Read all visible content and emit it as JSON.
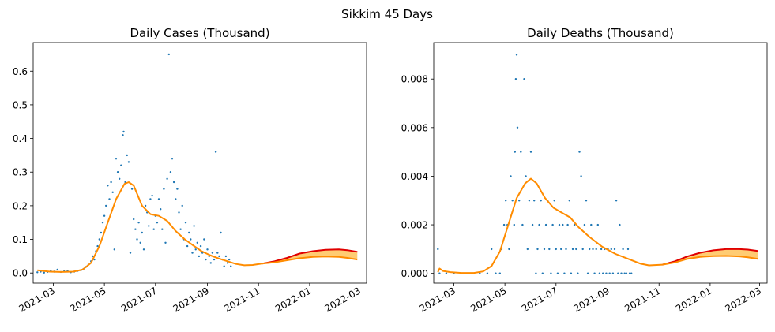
{
  "suptitle": "Sikkim 45 Days",
  "colors": {
    "scatter": "#1f77b4",
    "fit": "#ff8c00",
    "forecast": "#e00000",
    "band": "#ffbb44"
  },
  "chart_data": [
    {
      "type": "scatter",
      "title": "Daily Cases (Thousand)",
      "x_axis": "date",
      "xlim": [
        "2021-02-05",
        "2022-03-10"
      ],
      "ylim": [
        -0.03,
        0.685
      ],
      "xticks": [
        "2021-03",
        "2021-05",
        "2021-07",
        "2021-09",
        "2021-11",
        "2022-01",
        "2022-03"
      ],
      "yticks": [
        0.0,
        0.1,
        0.2,
        0.3,
        0.4,
        0.5,
        0.6
      ],
      "ytick_labels": [
        "0.0",
        "0.1",
        "0.2",
        "0.3",
        "0.4",
        "0.5",
        "0.6"
      ],
      "observed_points": [
        [
          "2021-02-10",
          0.002
        ],
        [
          "2021-02-14",
          0.004
        ],
        [
          "2021-02-18",
          0.001
        ],
        [
          "2021-02-22",
          0.003
        ],
        [
          "2021-02-26",
          0.006
        ],
        [
          "2021-03-02",
          0.004
        ],
        [
          "2021-03-06",
          0.01
        ],
        [
          "2021-03-10",
          0.003
        ],
        [
          "2021-03-14",
          0.005
        ],
        [
          "2021-03-18",
          0.007
        ],
        [
          "2021-03-22",
          0.002
        ],
        [
          "2021-03-26",
          0.004
        ],
        [
          "2021-03-30",
          0.006
        ],
        [
          "2021-04-03",
          0.008
        ],
        [
          "2021-04-06",
          0.012
        ],
        [
          "2021-04-09",
          0.018
        ],
        [
          "2021-04-12",
          0.025
        ],
        [
          "2021-04-15",
          0.035
        ],
        [
          "2021-04-17",
          0.05
        ],
        [
          "2021-04-19",
          0.04
        ],
        [
          "2021-04-21",
          0.065
        ],
        [
          "2021-04-23",
          0.08
        ],
        [
          "2021-04-25",
          0.1
        ],
        [
          "2021-04-27",
          0.12
        ],
        [
          "2021-04-29",
          0.15
        ],
        [
          "2021-05-01",
          0.17
        ],
        [
          "2021-05-03",
          0.2
        ],
        [
          "2021-05-05",
          0.26
        ],
        [
          "2021-05-07",
          0.22
        ],
        [
          "2021-05-09",
          0.27
        ],
        [
          "2021-05-11",
          0.24
        ],
        [
          "2021-05-13",
          0.07
        ],
        [
          "2021-05-15",
          0.34
        ],
        [
          "2021-05-17",
          0.3
        ],
        [
          "2021-05-19",
          0.28
        ],
        [
          "2021-05-21",
          0.32
        ],
        [
          "2021-05-23",
          0.41
        ],
        [
          "2021-05-24",
          0.42
        ],
        [
          "2021-05-26",
          0.27
        ],
        [
          "2021-05-28",
          0.35
        ],
        [
          "2021-05-30",
          0.33
        ],
        [
          "2021-06-01",
          0.06
        ],
        [
          "2021-06-03",
          0.25
        ],
        [
          "2021-06-05",
          0.16
        ],
        [
          "2021-06-07",
          0.13
        ],
        [
          "2021-06-09",
          0.1
        ],
        [
          "2021-06-11",
          0.15
        ],
        [
          "2021-06-13",
          0.09
        ],
        [
          "2021-06-15",
          0.12
        ],
        [
          "2021-06-17",
          0.07
        ],
        [
          "2021-06-19",
          0.2
        ],
        [
          "2021-06-21",
          0.18
        ],
        [
          "2021-06-23",
          0.14
        ],
        [
          "2021-06-25",
          0.22
        ],
        [
          "2021-06-27",
          0.23
        ],
        [
          "2021-06-29",
          0.13
        ],
        [
          "2021-07-01",
          0.17
        ],
        [
          "2021-07-03",
          0.15
        ],
        [
          "2021-07-05",
          0.22
        ],
        [
          "2021-07-07",
          0.19
        ],
        [
          "2021-07-09",
          0.13
        ],
        [
          "2021-07-11",
          0.25
        ],
        [
          "2021-07-13",
          0.09
        ],
        [
          "2021-07-15",
          0.28
        ],
        [
          "2021-07-17",
          0.65
        ],
        [
          "2021-07-19",
          0.3
        ],
        [
          "2021-07-21",
          0.34
        ],
        [
          "2021-07-23",
          0.27
        ],
        [
          "2021-07-25",
          0.22
        ],
        [
          "2021-07-27",
          0.25
        ],
        [
          "2021-07-29",
          0.18
        ],
        [
          "2021-07-31",
          0.13
        ],
        [
          "2021-08-02",
          0.2
        ],
        [
          "2021-08-04",
          0.1
        ],
        [
          "2021-08-06",
          0.15
        ],
        [
          "2021-08-08",
          0.08
        ],
        [
          "2021-08-10",
          0.12
        ],
        [
          "2021-08-12",
          0.1
        ],
        [
          "2021-08-14",
          0.06
        ],
        [
          "2021-08-16",
          0.14
        ],
        [
          "2021-08-18",
          0.07
        ],
        [
          "2021-08-20",
          0.09
        ],
        [
          "2021-08-22",
          0.05
        ],
        [
          "2021-08-24",
          0.08
        ],
        [
          "2021-08-26",
          0.06
        ],
        [
          "2021-08-28",
          0.1
        ],
        [
          "2021-08-30",
          0.04
        ],
        [
          "2021-09-01",
          0.07
        ],
        [
          "2021-09-03",
          0.05
        ],
        [
          "2021-09-05",
          0.03
        ],
        [
          "2021-09-07",
          0.06
        ],
        [
          "2021-09-09",
          0.04
        ],
        [
          "2021-09-11",
          0.36
        ],
        [
          "2021-09-13",
          0.06
        ],
        [
          "2021-09-15",
          0.05
        ],
        [
          "2021-09-17",
          0.12
        ],
        [
          "2021-09-19",
          0.04
        ],
        [
          "2021-09-21",
          0.02
        ],
        [
          "2021-09-23",
          0.05
        ],
        [
          "2021-09-25",
          0.03
        ],
        [
          "2021-09-27",
          0.04
        ],
        [
          "2021-09-29",
          0.02
        ]
      ],
      "fit_curve": [
        [
          "2021-02-10",
          0.008
        ],
        [
          "2021-02-25",
          0.004
        ],
        [
          "2021-03-10",
          0.003
        ],
        [
          "2021-03-25",
          0.004
        ],
        [
          "2021-04-05",
          0.01
        ],
        [
          "2021-04-15",
          0.03
        ],
        [
          "2021-04-25",
          0.08
        ],
        [
          "2021-05-05",
          0.15
        ],
        [
          "2021-05-15",
          0.22
        ],
        [
          "2021-05-25",
          0.265
        ],
        [
          "2021-05-30",
          0.27
        ],
        [
          "2021-06-05",
          0.26
        ],
        [
          "2021-06-15",
          0.2
        ],
        [
          "2021-06-25",
          0.175
        ],
        [
          "2021-07-05",
          0.17
        ],
        [
          "2021-07-15",
          0.155
        ],
        [
          "2021-07-25",
          0.125
        ],
        [
          "2021-08-05",
          0.1
        ],
        [
          "2021-08-15",
          0.082
        ],
        [
          "2021-08-25",
          0.065
        ],
        [
          "2021-09-05",
          0.052
        ],
        [
          "2021-09-15",
          0.043
        ],
        [
          "2021-09-25",
          0.035
        ],
        [
          "2021-10-05",
          0.027
        ],
        [
          "2021-10-15",
          0.023
        ],
        [
          "2021-10-25",
          0.024
        ],
        [
          "2021-11-05",
          0.028
        ]
      ],
      "forecast_upper": [
        [
          "2021-11-05",
          0.028
        ],
        [
          "2021-11-20",
          0.035
        ],
        [
          "2021-12-05",
          0.045
        ],
        [
          "2021-12-20",
          0.058
        ],
        [
          "2022-01-05",
          0.065
        ],
        [
          "2022-01-20",
          0.069
        ],
        [
          "2022-02-05",
          0.07
        ],
        [
          "2022-02-15",
          0.068
        ],
        [
          "2022-02-27",
          0.063
        ]
      ],
      "forecast_lower": [
        [
          "2021-11-05",
          0.028
        ],
        [
          "2021-11-20",
          0.032
        ],
        [
          "2021-12-05",
          0.038
        ],
        [
          "2021-12-20",
          0.044
        ],
        [
          "2022-01-05",
          0.048
        ],
        [
          "2022-01-20",
          0.049
        ],
        [
          "2022-02-05",
          0.048
        ],
        [
          "2022-02-15",
          0.045
        ],
        [
          "2022-02-27",
          0.04
        ]
      ]
    },
    {
      "type": "scatter",
      "title": "Daily Deaths (Thousand)",
      "x_axis": "date",
      "xlim": [
        "2021-02-05",
        "2022-03-10"
      ],
      "ylim": [
        -0.0004,
        0.0095
      ],
      "xticks": [
        "2021-03",
        "2021-05",
        "2021-07",
        "2021-09",
        "2021-11",
        "2022-01",
        "2022-03"
      ],
      "yticks": [
        0.0,
        0.002,
        0.004,
        0.006,
        0.008
      ],
      "ytick_labels": [
        "0.000",
        "0.002",
        "0.004",
        "0.006",
        "0.008"
      ],
      "observed_points": [
        [
          "2021-02-10",
          0.001
        ],
        [
          "2021-02-12",
          0.0
        ],
        [
          "2021-02-20",
          0.0
        ],
        [
          "2021-03-01",
          0.0
        ],
        [
          "2021-03-10",
          0.0
        ],
        [
          "2021-03-20",
          0.0
        ],
        [
          "2021-04-01",
          0.0
        ],
        [
          "2021-04-10",
          0.0
        ],
        [
          "2021-04-15",
          0.001
        ],
        [
          "2021-04-20",
          0.0
        ],
        [
          "2021-04-25",
          0.0
        ],
        [
          "2021-04-27",
          0.001
        ],
        [
          "2021-04-30",
          0.002
        ],
        [
          "2021-05-02",
          0.003
        ],
        [
          "2021-05-04",
          0.002
        ],
        [
          "2021-05-06",
          0.001
        ],
        [
          "2021-05-08",
          0.004
        ],
        [
          "2021-05-10",
          0.003
        ],
        [
          "2021-05-12",
          0.002
        ],
        [
          "2021-05-13",
          0.005
        ],
        [
          "2021-05-14",
          0.008
        ],
        [
          "2021-05-15",
          0.009
        ],
        [
          "2021-05-16",
          0.006
        ],
        [
          "2021-05-18",
          0.003
        ],
        [
          "2021-05-20",
          0.005
        ],
        [
          "2021-05-22",
          0.002
        ],
        [
          "2021-05-24",
          0.008
        ],
        [
          "2021-05-26",
          0.004
        ],
        [
          "2021-05-28",
          0.001
        ],
        [
          "2021-05-30",
          0.003
        ],
        [
          "2021-06-01",
          0.005
        ],
        [
          "2021-06-03",
          0.002
        ],
        [
          "2021-06-05",
          0.003
        ],
        [
          "2021-06-07",
          0.0
        ],
        [
          "2021-06-09",
          0.001
        ],
        [
          "2021-06-11",
          0.002
        ],
        [
          "2021-06-13",
          0.003
        ],
        [
          "2021-06-15",
          0.0
        ],
        [
          "2021-06-17",
          0.001
        ],
        [
          "2021-06-19",
          0.002
        ],
        [
          "2021-06-21",
          0.003
        ],
        [
          "2021-06-23",
          0.001
        ],
        [
          "2021-06-25",
          0.0
        ],
        [
          "2021-06-27",
          0.002
        ],
        [
          "2021-06-29",
          0.003
        ],
        [
          "2021-07-01",
          0.001
        ],
        [
          "2021-07-03",
          0.0
        ],
        [
          "2021-07-05",
          0.002
        ],
        [
          "2021-07-07",
          0.001
        ],
        [
          "2021-07-09",
          0.002
        ],
        [
          "2021-07-11",
          0.0
        ],
        [
          "2021-07-13",
          0.001
        ],
        [
          "2021-07-15",
          0.002
        ],
        [
          "2021-07-17",
          0.003
        ],
        [
          "2021-07-19",
          0.0
        ],
        [
          "2021-07-21",
          0.001
        ],
        [
          "2021-07-23",
          0.002
        ],
        [
          "2021-07-25",
          0.001
        ],
        [
          "2021-07-27",
          0.0
        ],
        [
          "2021-07-29",
          0.005
        ],
        [
          "2021-07-31",
          0.004
        ],
        [
          "2021-08-02",
          0.001
        ],
        [
          "2021-08-04",
          0.002
        ],
        [
          "2021-08-06",
          0.003
        ],
        [
          "2021-08-08",
          0.0
        ],
        [
          "2021-08-10",
          0.001
        ],
        [
          "2021-08-12",
          0.002
        ],
        [
          "2021-08-14",
          0.001
        ],
        [
          "2021-08-16",
          0.0
        ],
        [
          "2021-08-18",
          0.001
        ],
        [
          "2021-08-20",
          0.002
        ],
        [
          "2021-08-22",
          0.0
        ],
        [
          "2021-08-24",
          0.001
        ],
        [
          "2021-08-26",
          0.0
        ],
        [
          "2021-08-28",
          0.001
        ],
        [
          "2021-08-30",
          0.0
        ],
        [
          "2021-09-01",
          0.001
        ],
        [
          "2021-09-03",
          0.0
        ],
        [
          "2021-09-05",
          0.001
        ],
        [
          "2021-09-07",
          0.0
        ],
        [
          "2021-09-09",
          0.001
        ],
        [
          "2021-09-11",
          0.003
        ],
        [
          "2021-09-13",
          0.0
        ],
        [
          "2021-09-15",
          0.002
        ],
        [
          "2021-09-17",
          0.0
        ],
        [
          "2021-09-19",
          0.001
        ],
        [
          "2021-09-21",
          0.0
        ],
        [
          "2021-09-23",
          0.0
        ],
        [
          "2021-09-25",
          0.001
        ],
        [
          "2021-09-27",
          0.0
        ],
        [
          "2021-09-29",
          0.0
        ]
      ],
      "fit_curve": [
        [
          "2021-02-10",
          5e-05
        ],
        [
          "2021-02-12",
          0.0002
        ],
        [
          "2021-02-16",
          0.0001
        ],
        [
          "2021-02-25",
          5e-05
        ],
        [
          "2021-03-10",
          2e-05
        ],
        [
          "2021-03-25",
          2e-05
        ],
        [
          "2021-04-05",
          8e-05
        ],
        [
          "2021-04-15",
          0.0003
        ],
        [
          "2021-04-25",
          0.0009
        ],
        [
          "2021-05-05",
          0.002
        ],
        [
          "2021-05-15",
          0.0031
        ],
        [
          "2021-05-25",
          0.0037
        ],
        [
          "2021-06-01",
          0.0039
        ],
        [
          "2021-06-08",
          0.0037
        ],
        [
          "2021-06-18",
          0.0031
        ],
        [
          "2021-06-28",
          0.0027
        ],
        [
          "2021-07-08",
          0.0025
        ],
        [
          "2021-07-18",
          0.0023
        ],
        [
          "2021-07-28",
          0.0019
        ],
        [
          "2021-08-10",
          0.0015
        ],
        [
          "2021-08-25",
          0.0011
        ],
        [
          "2021-09-10",
          0.0008
        ],
        [
          "2021-09-25",
          0.0006
        ],
        [
          "2021-10-10",
          0.0004
        ],
        [
          "2021-10-20",
          0.00033
        ],
        [
          "2021-11-05",
          0.00036
        ]
      ],
      "forecast_upper": [
        [
          "2021-11-05",
          0.00036
        ],
        [
          "2021-11-20",
          0.0005
        ],
        [
          "2021-12-05",
          0.0007
        ],
        [
          "2021-12-20",
          0.00085
        ],
        [
          "2022-01-05",
          0.00095
        ],
        [
          "2022-01-20",
          0.001
        ],
        [
          "2022-02-05",
          0.001
        ],
        [
          "2022-02-15",
          0.00098
        ],
        [
          "2022-02-27",
          0.00092
        ]
      ],
      "forecast_lower": [
        [
          "2021-11-05",
          0.00036
        ],
        [
          "2021-11-20",
          0.00045
        ],
        [
          "2021-12-05",
          0.0006
        ],
        [
          "2021-12-20",
          0.00068
        ],
        [
          "2022-01-05",
          0.00071
        ],
        [
          "2022-01-20",
          0.00072
        ],
        [
          "2022-02-05",
          0.0007
        ],
        [
          "2022-02-15",
          0.00066
        ],
        [
          "2022-02-27",
          0.0006
        ]
      ]
    }
  ]
}
